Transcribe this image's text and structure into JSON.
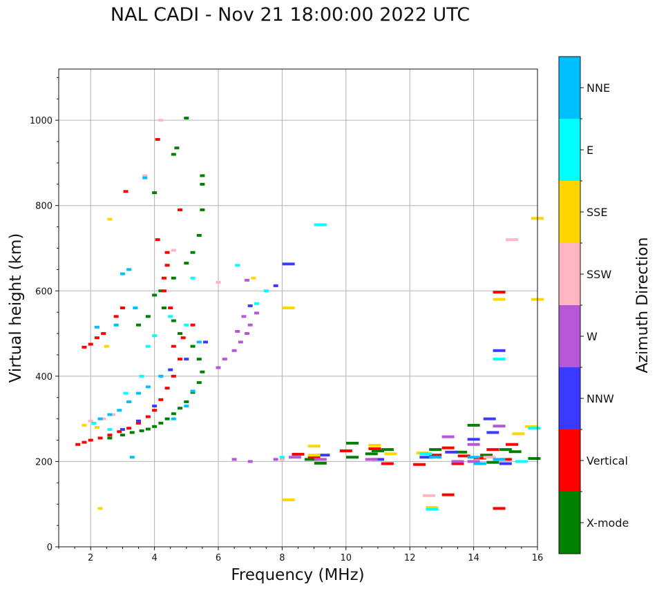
{
  "chart_data": {
    "type": "scatter",
    "title": "NAL CADI - Nov 21 18:00:00 2022 UTC",
    "xlabel": "Frequency (MHz)",
    "ylabel": "Virtual height (km)",
    "xlim": [
      1,
      16
    ],
    "ylim": [
      0,
      1120
    ],
    "xticks": [
      2,
      4,
      6,
      8,
      10,
      12,
      14,
      16
    ],
    "yticks": [
      0,
      200,
      400,
      600,
      800,
      1000
    ],
    "grid": true,
    "colorbar": {
      "label": "Azimuth Direction",
      "categories": [
        {
          "name": "X-mode",
          "color": "#008000"
        },
        {
          "name": "Vertical",
          "color": "#ff0000"
        },
        {
          "name": "NNW",
          "color": "#3a3aff"
        },
        {
          "name": "W",
          "color": "#b657d6"
        },
        {
          "name": "SSW",
          "color": "#ffb6c1"
        },
        {
          "name": "SSE",
          "color": "#ffd700"
        },
        {
          "name": "E",
          "color": "#00ffff"
        },
        {
          "name": "NNE",
          "color": "#00bfff"
        }
      ]
    },
    "series": [
      {
        "name": "X-mode",
        "points": [
          [
            2.6,
            255
          ],
          [
            3.0,
            262
          ],
          [
            3.3,
            268
          ],
          [
            3.6,
            272
          ],
          [
            3.8,
            276
          ],
          [
            4.0,
            282
          ],
          [
            4.2,
            290
          ],
          [
            4.4,
            300
          ],
          [
            4.6,
            312
          ],
          [
            4.8,
            325
          ],
          [
            5.0,
            340
          ],
          [
            5.2,
            362
          ],
          [
            5.4,
            385
          ],
          [
            5.5,
            410
          ],
          [
            5.4,
            440
          ],
          [
            5.2,
            470
          ],
          [
            4.8,
            500
          ],
          [
            4.6,
            530
          ],
          [
            4.3,
            560
          ],
          [
            4.0,
            590
          ],
          [
            3.8,
            540
          ],
          [
            3.5,
            520
          ],
          [
            4.2,
            600
          ],
          [
            4.6,
            630
          ],
          [
            5.0,
            665
          ],
          [
            5.2,
            690
          ],
          [
            5.4,
            730
          ],
          [
            5.5,
            790
          ],
          [
            5.5,
            850
          ],
          [
            5.5,
            870
          ],
          [
            5.0,
            1005
          ],
          [
            4.7,
            935
          ],
          [
            4.6,
            920
          ],
          [
            4.0,
            830
          ],
          [
            10.2,
            243
          ],
          [
            10.8,
            218
          ],
          [
            11.3,
            228
          ],
          [
            12.8,
            228
          ],
          [
            13.6,
            222
          ],
          [
            14.0,
            285
          ],
          [
            14.4,
            215
          ],
          [
            14.6,
            198
          ],
          [
            15.0,
            228
          ],
          [
            15.3,
            223
          ],
          [
            15.9,
            207
          ],
          [
            9.2,
            196
          ],
          [
            8.9,
            205
          ],
          [
            10.2,
            210
          ],
          [
            11.0,
            225
          ]
        ]
      },
      {
        "name": "Vertical",
        "points": [
          [
            1.6,
            240
          ],
          [
            1.8,
            245
          ],
          [
            2.0,
            250
          ],
          [
            2.3,
            255
          ],
          [
            2.6,
            262
          ],
          [
            2.9,
            270
          ],
          [
            3.2,
            278
          ],
          [
            3.5,
            290
          ],
          [
            3.8,
            305
          ],
          [
            4.0,
            320
          ],
          [
            4.2,
            345
          ],
          [
            4.4,
            372
          ],
          [
            4.6,
            400
          ],
          [
            4.8,
            440
          ],
          [
            4.6,
            470
          ],
          [
            4.9,
            490
          ],
          [
            5.2,
            520
          ],
          [
            4.5,
            560
          ],
          [
            4.3,
            600
          ],
          [
            4.3,
            630
          ],
          [
            4.4,
            660
          ],
          [
            4.4,
            690
          ],
          [
            4.1,
            720
          ],
          [
            4.1,
            955
          ],
          [
            4.8,
            790
          ],
          [
            3.0,
            560
          ],
          [
            2.8,
            540
          ],
          [
            2.4,
            500
          ],
          [
            2.2,
            490
          ],
          [
            2.0,
            475
          ],
          [
            1.8,
            468
          ],
          [
            3.1,
            833
          ],
          [
            8.5,
            217
          ],
          [
            9.0,
            210
          ],
          [
            10.0,
            225
          ],
          [
            10.9,
            230
          ],
          [
            11.3,
            195
          ],
          [
            12.3,
            193
          ],
          [
            12.8,
            215
          ],
          [
            13.2,
            232
          ],
          [
            13.5,
            195
          ],
          [
            13.7,
            213
          ],
          [
            14.2,
            208
          ],
          [
            14.6,
            228
          ],
          [
            15.2,
            240
          ],
          [
            14.8,
            597
          ],
          [
            14.8,
            90
          ],
          [
            13.2,
            122
          ],
          [
            15.0,
            205
          ]
        ]
      },
      {
        "name": "NNW",
        "points": [
          [
            3.0,
            275
          ],
          [
            3.5,
            295
          ],
          [
            4.0,
            330
          ],
          [
            4.5,
            415
          ],
          [
            5.0,
            440
          ],
          [
            5.6,
            480
          ],
          [
            7.0,
            565
          ],
          [
            7.8,
            612
          ],
          [
            8.2,
            663
          ],
          [
            11.0,
            205
          ],
          [
            12.5,
            210
          ],
          [
            13.3,
            222
          ],
          [
            14.0,
            252
          ],
          [
            14.5,
            300
          ],
          [
            14.6,
            268
          ],
          [
            14.8,
            460
          ],
          [
            15.0,
            195
          ],
          [
            9.3,
            215
          ]
        ]
      },
      {
        "name": "W",
        "points": [
          [
            6.0,
            420
          ],
          [
            6.2,
            440
          ],
          [
            6.5,
            460
          ],
          [
            6.7,
            480
          ],
          [
            6.9,
            500
          ],
          [
            7.0,
            520
          ],
          [
            7.2,
            548
          ],
          [
            6.8,
            540
          ],
          [
            6.6,
            505
          ],
          [
            6.9,
            625
          ],
          [
            6.5,
            205
          ],
          [
            7.0,
            200
          ],
          [
            7.8,
            205
          ],
          [
            8.4,
            210
          ],
          [
            9.2,
            205
          ],
          [
            10.8,
            205
          ],
          [
            13.2,
            258
          ],
          [
            13.5,
            200
          ],
          [
            14.0,
            240
          ],
          [
            14.8,
            283
          ],
          [
            14.0,
            200
          ]
        ]
      },
      {
        "name": "SSW",
        "points": [
          [
            2.0,
            295
          ],
          [
            2.4,
            300
          ],
          [
            2.7,
            310
          ],
          [
            4.2,
            1000
          ],
          [
            3.7,
            870
          ],
          [
            4.6,
            695
          ],
          [
            6.0,
            620
          ],
          [
            8.0,
            205
          ],
          [
            12.6,
            120
          ],
          [
            15.2,
            720
          ],
          [
            14.5,
            210
          ]
        ]
      },
      {
        "name": "SSE",
        "points": [
          [
            1.8,
            285
          ],
          [
            2.2,
            280
          ],
          [
            2.5,
            470
          ],
          [
            7.1,
            630
          ],
          [
            8.2,
            560
          ],
          [
            8.2,
            110
          ],
          [
            9.0,
            236
          ],
          [
            10.9,
            238
          ],
          [
            11.4,
            218
          ],
          [
            12.4,
            220
          ],
          [
            15.4,
            265
          ],
          [
            14.8,
            580
          ],
          [
            15.8,
            282
          ],
          [
            16.0,
            770
          ],
          [
            16.0,
            580
          ],
          [
            12.7,
            92
          ],
          [
            2.3,
            90
          ],
          [
            2.6,
            768
          ],
          [
            9.0,
            215
          ]
        ]
      },
      {
        "name": "E",
        "points": [
          [
            2.1,
            290
          ],
          [
            2.6,
            275
          ],
          [
            3.1,
            360
          ],
          [
            3.6,
            400
          ],
          [
            3.8,
            470
          ],
          [
            4.0,
            495
          ],
          [
            4.5,
            540
          ],
          [
            5.0,
            520
          ],
          [
            5.2,
            630
          ],
          [
            6.6,
            660
          ],
          [
            7.2,
            570
          ],
          [
            7.5,
            600
          ],
          [
            9.2,
            755
          ],
          [
            12.5,
            218
          ],
          [
            12.7,
            88
          ],
          [
            14.8,
            440
          ],
          [
            15.5,
            200
          ],
          [
            15.9,
            278
          ],
          [
            8.0,
            210
          ]
        ]
      },
      {
        "name": "NNE",
        "points": [
          [
            2.3,
            300
          ],
          [
            2.6,
            310
          ],
          [
            2.9,
            320
          ],
          [
            3.2,
            340
          ],
          [
            3.5,
            360
          ],
          [
            3.8,
            375
          ],
          [
            4.2,
            400
          ],
          [
            4.6,
            300
          ],
          [
            5.0,
            330
          ],
          [
            5.2,
            365
          ],
          [
            5.4,
            480
          ],
          [
            3.4,
            560
          ],
          [
            3.2,
            650
          ],
          [
            3.0,
            640
          ],
          [
            2.8,
            520
          ],
          [
            2.2,
            515
          ],
          [
            3.7,
            865
          ],
          [
            3.3,
            210
          ],
          [
            12.8,
            210
          ],
          [
            14.2,
            195
          ],
          [
            14.0,
            210
          ],
          [
            14.8,
            205
          ]
        ]
      }
    ]
  }
}
